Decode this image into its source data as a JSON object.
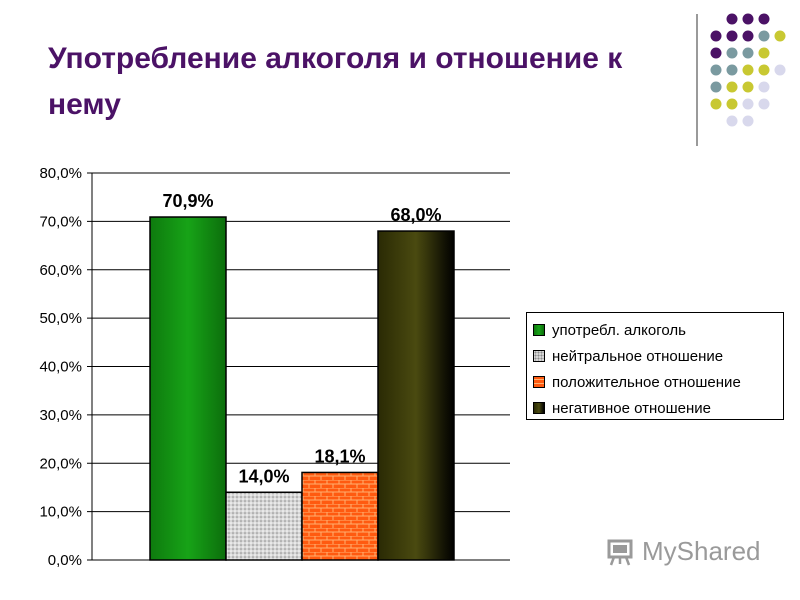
{
  "slide": {
    "title": "Употребление алкоголя и отношение к нему"
  },
  "decoration": {
    "dot_colors": [
      "#4b1266",
      "#7a9aa0",
      "#c8c832",
      "#d8d8ec"
    ]
  },
  "chart_data": {
    "type": "bar",
    "title": "",
    "xlabel": "",
    "ylabel": "",
    "ylim": [
      0,
      80
    ],
    "y_ticks": [
      "0,0%",
      "10,0%",
      "20,0%",
      "30,0%",
      "40,0%",
      "50,0%",
      "60,0%",
      "70,0%",
      "80,0%"
    ],
    "grid": true,
    "legend_position": "right",
    "series": [
      {
        "name": "употребл. алкоголь",
        "value": 70.9,
        "label": "70,9%",
        "color": "#118a11",
        "pattern": "solid-gradient"
      },
      {
        "name": "нейтральное отношение",
        "value": 14.0,
        "label": "14,0%",
        "color": "#c8c8c8",
        "pattern": "dotted"
      },
      {
        "name": "положительное отношение",
        "value": 18.1,
        "label": "18,1%",
        "color": "#ff4a00",
        "pattern": "brick"
      },
      {
        "name": "негативное отношение",
        "value": 68.0,
        "label": "68,0%",
        "color": "#3a3a08",
        "pattern": "solid-gradient"
      }
    ]
  },
  "watermark": {
    "text": "MyShared"
  }
}
